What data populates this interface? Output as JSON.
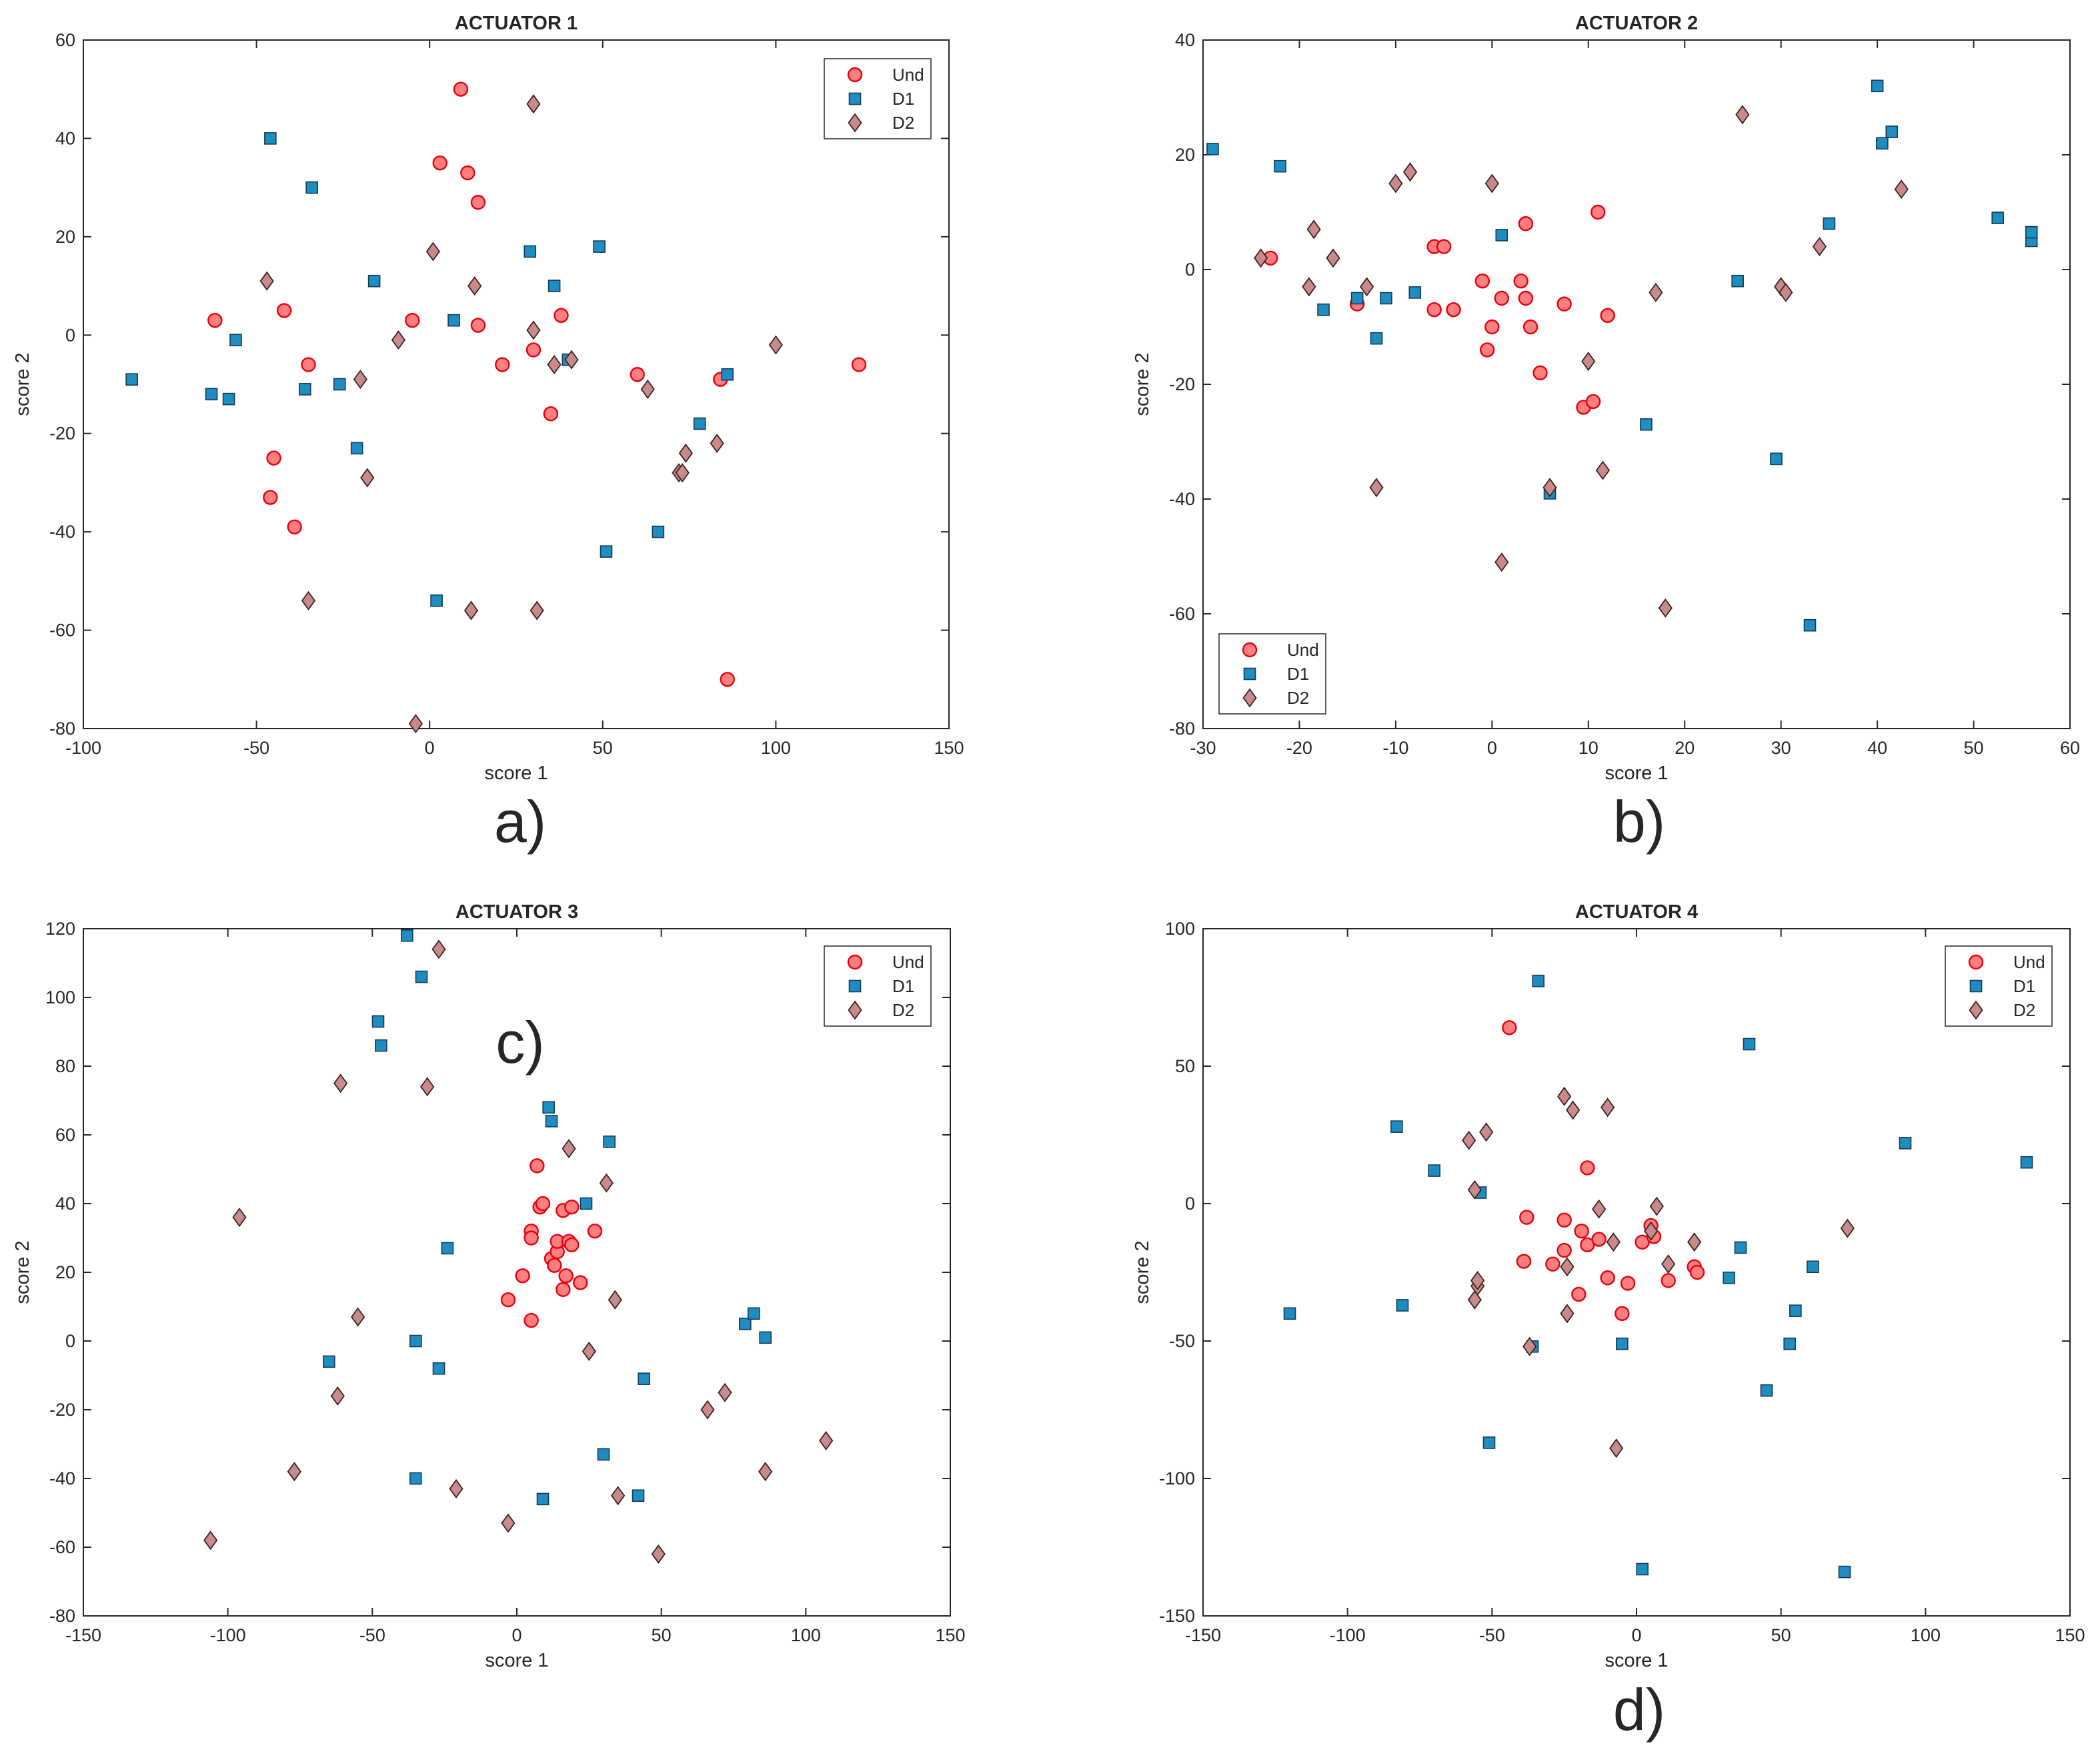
{
  "figure": {
    "panel_labels": [
      "a)",
      "b)",
      "c)",
      "d)"
    ]
  },
  "chart_data": [
    {
      "type": "scatter",
      "title": "ACTUATOR 1",
      "xlabel": "score 1",
      "ylabel": "score 2",
      "xlim": [
        -100,
        150
      ],
      "ylim": [
        -80,
        60
      ],
      "xticks": [
        -100,
        -50,
        0,
        50,
        100,
        150
      ],
      "yticks": [
        -80,
        -60,
        -40,
        -20,
        0,
        20,
        40,
        60
      ],
      "legend_position": "top-right",
      "series": [
        {
          "name": "Und",
          "marker": "circle",
          "points": [
            [
              -62,
              3
            ],
            [
              -42,
              5
            ],
            [
              -35,
              -6
            ],
            [
              -45,
              -25
            ],
            [
              -46,
              -33
            ],
            [
              -39,
              -39
            ],
            [
              -5,
              3
            ],
            [
              3,
              35
            ],
            [
              9,
              50
            ],
            [
              11,
              33
            ],
            [
              14,
              27
            ],
            [
              14,
              2
            ],
            [
              21,
              -6
            ],
            [
              30,
              -3
            ],
            [
              38,
              4
            ],
            [
              35,
              -16
            ],
            [
              60,
              -8
            ],
            [
              84,
              -9
            ],
            [
              86,
              -70
            ],
            [
              124,
              -6
            ]
          ]
        },
        {
          "name": "D1",
          "marker": "square",
          "points": [
            [
              -86,
              -9
            ],
            [
              -63,
              -12
            ],
            [
              -58,
              -13
            ],
            [
              -56,
              -1
            ],
            [
              -46,
              40
            ],
            [
              -34,
              30
            ],
            [
              -36,
              -11
            ],
            [
              -26,
              -10
            ],
            [
              -21,
              -23
            ],
            [
              -16,
              11
            ],
            [
              2,
              -54
            ],
            [
              7,
              3
            ],
            [
              29,
              17
            ],
            [
              36,
              10
            ],
            [
              40,
              -5
            ],
            [
              49,
              18
            ],
            [
              51,
              -44
            ],
            [
              66,
              -40
            ],
            [
              78,
              -18
            ],
            [
              86,
              -8
            ]
          ]
        },
        {
          "name": "D2",
          "marker": "diamond",
          "points": [
            [
              -47,
              11
            ],
            [
              -35,
              -54
            ],
            [
              -20,
              -9
            ],
            [
              -18,
              -29
            ],
            [
              -9,
              -1
            ],
            [
              -4,
              -79
            ],
            [
              1,
              17
            ],
            [
              12,
              -56
            ],
            [
              13,
              10
            ],
            [
              30,
              47
            ],
            [
              30,
              1
            ],
            [
              31,
              -56
            ],
            [
              36,
              -6
            ],
            [
              41,
              -5
            ],
            [
              63,
              -11
            ],
            [
              72,
              -28
            ],
            [
              73,
              -28
            ],
            [
              74,
              -24
            ],
            [
              83,
              -22
            ],
            [
              100,
              -2
            ]
          ]
        }
      ]
    },
    {
      "type": "scatter",
      "title": "ACTUATOR 2",
      "xlabel": "score 1",
      "ylabel": "score 2",
      "xlim": [
        -30,
        60
      ],
      "ylim": [
        -80,
        40
      ],
      "xticks": [
        -30,
        -20,
        -10,
        0,
        10,
        20,
        30,
        40,
        50,
        60
      ],
      "yticks": [
        -80,
        -60,
        -40,
        -20,
        0,
        20,
        40
      ],
      "legend_position": "bottom-left",
      "series": [
        {
          "name": "Und",
          "marker": "circle",
          "points": [
            [
              -23,
              2
            ],
            [
              -14,
              -6
            ],
            [
              -6,
              -7
            ],
            [
              -6,
              4
            ],
            [
              -5,
              4
            ],
            [
              -4,
              -7
            ],
            [
              -1,
              -2
            ],
            [
              -0.5,
              -14
            ],
            [
              0,
              -10
            ],
            [
              1,
              -5
            ],
            [
              3,
              -2
            ],
            [
              3.5,
              8
            ],
            [
              3.5,
              -5
            ],
            [
              4,
              -10
            ],
            [
              5,
              -18
            ],
            [
              7.5,
              -6
            ],
            [
              9.5,
              -24
            ],
            [
              10.5,
              -23
            ],
            [
              11,
              10
            ],
            [
              12,
              -8
            ]
          ]
        },
        {
          "name": "D1",
          "marker": "square",
          "points": [
            [
              -29,
              21
            ],
            [
              -22,
              18
            ],
            [
              -17.5,
              -7
            ],
            [
              -14,
              -5
            ],
            [
              -12,
              -12
            ],
            [
              -11,
              -5
            ],
            [
              -8,
              -4
            ],
            [
              1,
              6
            ],
            [
              6,
              -39
            ],
            [
              16,
              -27
            ],
            [
              25.5,
              -2
            ],
            [
              29.5,
              -33
            ],
            [
              33,
              -62
            ],
            [
              35,
              8
            ],
            [
              40,
              32
            ],
            [
              40.5,
              22
            ],
            [
              41.5,
              24
            ],
            [
              52.5,
              9
            ],
            [
              56,
              5
            ],
            [
              56,
              6.5
            ]
          ]
        },
        {
          "name": "D2",
          "marker": "diamond",
          "points": [
            [
              -24,
              2
            ],
            [
              -19,
              -3
            ],
            [
              -18.5,
              7
            ],
            [
              -16.5,
              2
            ],
            [
              -13,
              -3
            ],
            [
              -12,
              -38
            ],
            [
              -10,
              15
            ],
            [
              -8.5,
              17
            ],
            [
              0,
              15
            ],
            [
              1,
              -51
            ],
            [
              6,
              -38
            ],
            [
              10,
              -16
            ],
            [
              11.5,
              -35
            ],
            [
              17,
              -4
            ],
            [
              18,
              -59
            ],
            [
              26,
              27
            ],
            [
              30,
              -3
            ],
            [
              30.5,
              -4
            ],
            [
              34,
              4
            ],
            [
              42.5,
              14
            ]
          ]
        }
      ]
    },
    {
      "type": "scatter",
      "title": "ACTUATOR 3",
      "xlabel": "score 1",
      "ylabel": "score 2",
      "xlim": [
        -150,
        150
      ],
      "ylim": [
        -80,
        120
      ],
      "xticks": [
        -150,
        -100,
        -50,
        0,
        50,
        100,
        150
      ],
      "yticks": [
        -80,
        -60,
        -40,
        -20,
        0,
        20,
        40,
        60,
        80,
        100,
        120
      ],
      "legend_position": "top-right",
      "series": [
        {
          "name": "Und",
          "marker": "circle",
          "points": [
            [
              -3,
              12
            ],
            [
              2,
              19
            ],
            [
              5,
              6
            ],
            [
              5,
              32
            ],
            [
              5,
              30
            ],
            [
              7,
              51
            ],
            [
              8,
              39
            ],
            [
              9,
              40
            ],
            [
              12,
              24
            ],
            [
              13,
              22
            ],
            [
              14,
              26
            ],
            [
              14,
              29
            ],
            [
              16,
              38
            ],
            [
              16,
              15
            ],
            [
              17,
              19
            ],
            [
              18,
              29
            ],
            [
              19,
              39
            ],
            [
              19,
              28
            ],
            [
              22,
              17
            ],
            [
              27,
              32
            ]
          ]
        },
        {
          "name": "D1",
          "marker": "square",
          "points": [
            [
              -65,
              -6
            ],
            [
              -48,
              93
            ],
            [
              -47,
              86
            ],
            [
              -38,
              118
            ],
            [
              -35,
              0
            ],
            [
              -35,
              -40
            ],
            [
              -33,
              106
            ],
            [
              -27,
              -8
            ],
            [
              -24,
              27
            ],
            [
              9,
              -46
            ],
            [
              11,
              68
            ],
            [
              12,
              64
            ],
            [
              24,
              40
            ],
            [
              30,
              -33
            ],
            [
              32,
              58
            ],
            [
              42,
              -45
            ],
            [
              44,
              -11
            ],
            [
              79,
              5
            ],
            [
              82,
              8
            ],
            [
              86,
              1
            ]
          ]
        },
        {
          "name": "D2",
          "marker": "diamond",
          "points": [
            [
              -106,
              -58
            ],
            [
              -96,
              36
            ],
            [
              -77,
              -38
            ],
            [
              -62,
              -16
            ],
            [
              -61,
              75
            ],
            [
              -55,
              7
            ],
            [
              -31,
              74
            ],
            [
              -27,
              114
            ],
            [
              -21,
              -43
            ],
            [
              -3,
              -53
            ],
            [
              18,
              56
            ],
            [
              25,
              -3
            ],
            [
              31,
              46
            ],
            [
              34,
              12
            ],
            [
              35,
              -45
            ],
            [
              49,
              -62
            ],
            [
              66,
              -20
            ],
            [
              72,
              -15
            ],
            [
              86,
              -38
            ],
            [
              107,
              -29
            ]
          ]
        }
      ]
    },
    {
      "type": "scatter",
      "title": "ACTUATOR 4",
      "xlabel": "score 1",
      "ylabel": "score 2",
      "xlim": [
        -150,
        150
      ],
      "ylim": [
        -150,
        100
      ],
      "xticks": [
        -150,
        -100,
        -50,
        0,
        50,
        100,
        150
      ],
      "yticks": [
        -150,
        -100,
        -50,
        0,
        50,
        100
      ],
      "legend_position": "top-right",
      "series": [
        {
          "name": "Und",
          "marker": "circle",
          "points": [
            [
              -44,
              64
            ],
            [
              -38,
              -5
            ],
            [
              -39,
              -21
            ],
            [
              -29,
              -22
            ],
            [
              -25,
              -6
            ],
            [
              -25,
              -17
            ],
            [
              -20,
              -33
            ],
            [
              -19,
              -10
            ],
            [
              -17,
              13
            ],
            [
              -17,
              -15
            ],
            [
              -13,
              -13
            ],
            [
              -10,
              -27
            ],
            [
              -5,
              -40
            ],
            [
              -3,
              -29
            ],
            [
              2,
              -14
            ],
            [
              5,
              -8
            ],
            [
              6,
              -12
            ],
            [
              11,
              -28
            ],
            [
              20,
              -23
            ],
            [
              21,
              -25
            ]
          ]
        },
        {
          "name": "D1",
          "marker": "square",
          "points": [
            [
              -120,
              -40
            ],
            [
              -83,
              28
            ],
            [
              -81,
              -37
            ],
            [
              -70,
              12
            ],
            [
              -54,
              4
            ],
            [
              -51,
              -87
            ],
            [
              -36,
              -52
            ],
            [
              -34,
              81
            ],
            [
              -5,
              -51
            ],
            [
              2,
              -133
            ],
            [
              32,
              -27
            ],
            [
              36,
              -16
            ],
            [
              39,
              58
            ],
            [
              45,
              -68
            ],
            [
              53,
              -51
            ],
            [
              55,
              -39
            ],
            [
              61,
              -23
            ],
            [
              72,
              -134
            ],
            [
              93,
              22
            ],
            [
              135,
              15
            ]
          ]
        },
        {
          "name": "D2",
          "marker": "diamond",
          "points": [
            [
              -58,
              23
            ],
            [
              -56,
              5
            ],
            [
              -56,
              -35
            ],
            [
              -55,
              -30
            ],
            [
              -55,
              -28
            ],
            [
              -52,
              26
            ],
            [
              -37,
              -52
            ],
            [
              -25,
              39
            ],
            [
              -24,
              -40
            ],
            [
              -24,
              -23
            ],
            [
              -22,
              34
            ],
            [
              -13,
              -2
            ],
            [
              -10,
              35
            ],
            [
              -8,
              -14
            ],
            [
              -7,
              -89
            ],
            [
              5,
              -10
            ],
            [
              7,
              -1
            ],
            [
              11,
              -22
            ],
            [
              20,
              -14
            ],
            [
              73,
              -9
            ]
          ]
        }
      ]
    }
  ],
  "style": {
    "und_fill": "#fd7f7f",
    "und_stroke": "#e8000b",
    "d1_fill": "#1f8dc2",
    "d1_stroke": "#123c55",
    "d2_fill": "#c98a8a",
    "d2_stroke": "#3a2323",
    "axis_color": "#262626",
    "grid": false
  }
}
